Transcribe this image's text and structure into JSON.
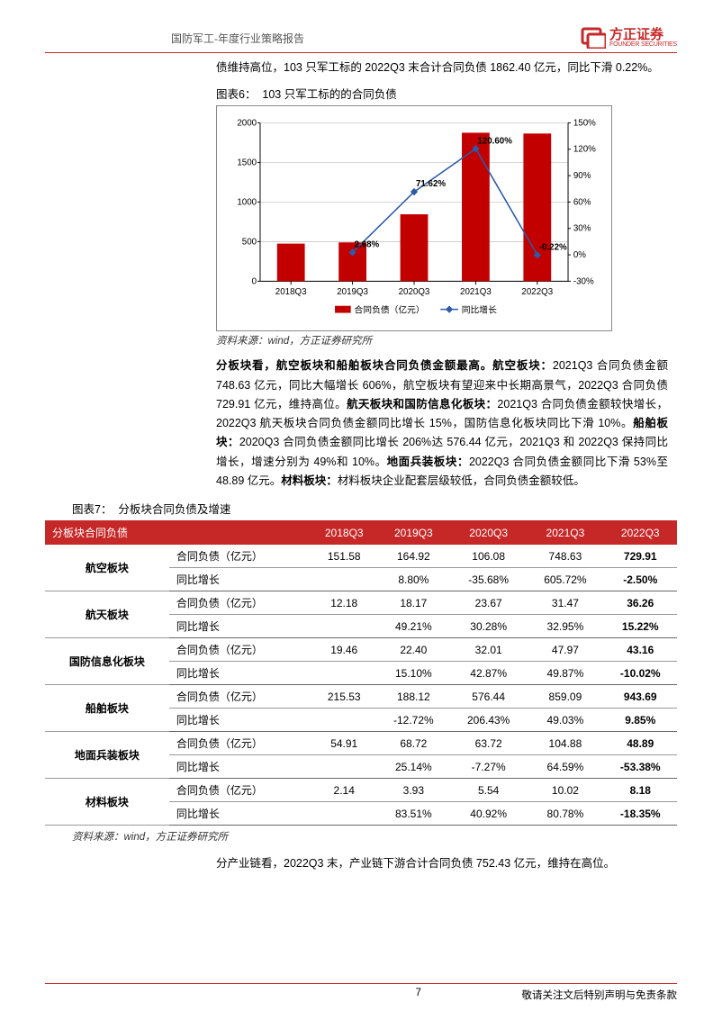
{
  "header": {
    "title": "国防军工-年度行业策略报告",
    "logo_cn": "方正证券",
    "logo_en": "FOUNDER SECURITIES",
    "logo_color": "#c62828"
  },
  "intro_text": "债维持高位，103 只军工标的 2022Q3 末合计合同负债 1862.40 亿元，同比下滑 0.22%。",
  "chart6": {
    "title_prefix": "图表6：",
    "title": "103 只军工标的的合同负债",
    "type": "combo_bar_line",
    "categories": [
      "2018Q3",
      "2019Q3",
      "2020Q3",
      "2021Q3",
      "2022Q3"
    ],
    "bar_values": [
      475,
      490,
      845,
      1875,
      1865
    ],
    "line_values": [
      null,
      2.68,
      71.62,
      120.6,
      -0.22
    ],
    "line_labels": [
      "",
      "2.68%",
      "71.62%",
      "120.60%",
      "-0.22%"
    ],
    "y1_label_implied": "",
    "y1_min": 0,
    "y1_max": 2000,
    "y1_step": 500,
    "y2_min": -30,
    "y2_max": 150,
    "y2_step": 30,
    "bar_color": "#c20000",
    "line_color": "#2e5aa8",
    "marker_color": "#2e5aa8",
    "grid_color": "#bfbfbf",
    "background_color": "#ffffff",
    "legend_bar": "合同负债（亿元）",
    "legend_line": "同比增长",
    "axis_fontsize": 10,
    "legend_fontsize": 10,
    "datalabel_fontsize": 10,
    "bar_width_ratio": 0.45,
    "source": "资料来源：wind，方正证券研究所"
  },
  "para2_parts": [
    {
      "bold": true,
      "text": "分板块看，航空板块和船舶板块合同负债金额最高。航空板块："
    },
    {
      "bold": false,
      "text": "2021Q3 合同负债金额 748.63 亿元，同比大幅增长 606%，航空板块有望迎来中长期高景气，2022Q3 合同负债 729.91 亿元，维持高位。"
    },
    {
      "bold": true,
      "text": "航天板块和国防信息化板块："
    },
    {
      "bold": false,
      "text": "2021Q3 合同负债金额较快增长，2022Q3 航天板块合同负债金额同比增长 15%，国防信息化板块同比下滑 10%。"
    },
    {
      "bold": true,
      "text": "船舶板块："
    },
    {
      "bold": false,
      "text": "2020Q3 合同负债金额同比增长 206%达 576.44 亿元，2021Q3 和 2022Q3 保持同比增长，增速分别为 49%和 10%。"
    },
    {
      "bold": true,
      "text": "地面兵装板块："
    },
    {
      "bold": false,
      "text": "2022Q3 合同负债金额同比下滑 53%至 48.89 亿元。"
    },
    {
      "bold": true,
      "text": "材料板块："
    },
    {
      "bold": false,
      "text": "材料板块企业配套层级较低，合同负债金额较低。"
    }
  ],
  "table7": {
    "title_prefix": "图表7：",
    "title": "分板块合同负债及增速",
    "header_bg": "#c62828",
    "header_fg": "#ffffff",
    "border_color": "#999999",
    "columns": [
      "分板块合同负债",
      "2018Q3",
      "2019Q3",
      "2020Q3",
      "2021Q3",
      "2022Q3"
    ],
    "metric_labels": [
      "合同负债（亿元）",
      "同比增长"
    ],
    "sectors": [
      {
        "name": "航空板块",
        "rows": [
          [
            "151.58",
            "164.92",
            "106.08",
            "748.63",
            "729.91"
          ],
          [
            "",
            "8.80%",
            "-35.68%",
            "605.72%",
            "-2.50%"
          ]
        ]
      },
      {
        "name": "航天板块",
        "rows": [
          [
            "12.18",
            "18.17",
            "23.67",
            "31.47",
            "36.26"
          ],
          [
            "",
            "49.21%",
            "30.28%",
            "32.95%",
            "15.22%"
          ]
        ]
      },
      {
        "name": "国防信息化板块",
        "rows": [
          [
            "19.46",
            "22.40",
            "32.01",
            "47.97",
            "43.16"
          ],
          [
            "",
            "15.10%",
            "42.87%",
            "49.87%",
            "-10.02%"
          ]
        ]
      },
      {
        "name": "船舶板块",
        "rows": [
          [
            "215.53",
            "188.12",
            "576.44",
            "859.09",
            "943.69"
          ],
          [
            "",
            "-12.72%",
            "206.43%",
            "49.03%",
            "9.85%"
          ]
        ]
      },
      {
        "name": "地面兵装板块",
        "rows": [
          [
            "54.91",
            "68.72",
            "63.72",
            "104.88",
            "48.89"
          ],
          [
            "",
            "25.14%",
            "-7.27%",
            "64.59%",
            "-53.38%"
          ]
        ]
      },
      {
        "name": "材料板块",
        "rows": [
          [
            "2.14",
            "3.93",
            "5.54",
            "10.02",
            "8.18"
          ],
          [
            "",
            "83.51%",
            "40.92%",
            "80.78%",
            "-18.35%"
          ]
        ]
      }
    ],
    "source": "资料来源：wind，方正证券研究所"
  },
  "para3": "分产业链看，2022Q3 末，产业链下游合计合同负债 752.43 亿元，维持在高位。",
  "footer": {
    "page_num": "7",
    "disclaimer": "敬请关注文后特别声明与免责条款"
  }
}
